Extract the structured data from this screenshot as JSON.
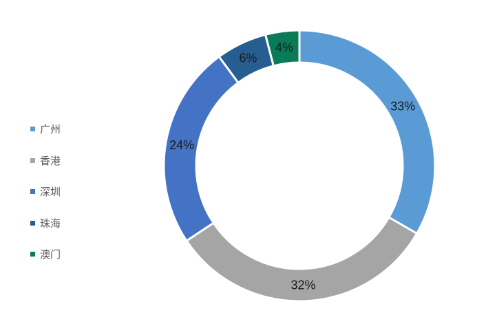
{
  "chart_data": {
    "type": "pie",
    "style": "donut",
    "legend_position": "left",
    "series": [
      {
        "name": "广州",
        "label": "33%",
        "value": 33,
        "color": "#5b9bd5"
      },
      {
        "name": "香港",
        "label": "32%",
        "value": 32,
        "color": "#a5a5a5"
      },
      {
        "name": "深圳",
        "label": "24%",
        "value": 24,
        "color": "#4472c4"
      },
      {
        "name": "珠海",
        "label": "6%",
        "value": 6,
        "color": "#255e91"
      },
      {
        "name": "澳门",
        "label": "4%",
        "value": 4,
        "color": "#0a7b57"
      }
    ]
  }
}
